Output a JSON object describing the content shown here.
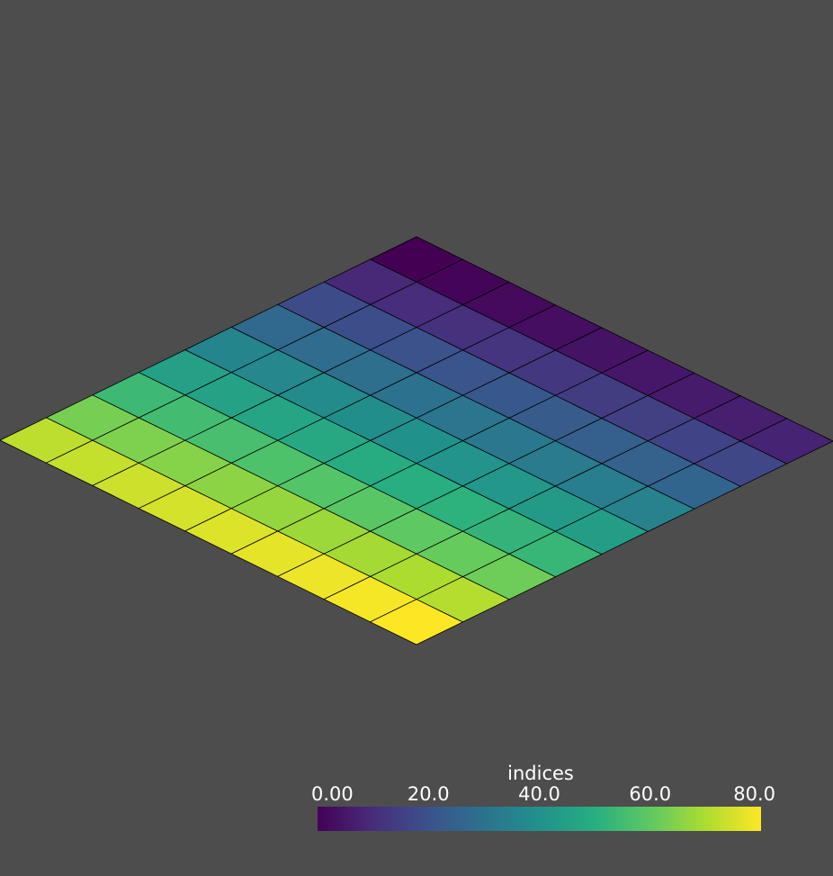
{
  "chart_data": {
    "type": "heatmap",
    "grid": {
      "rows": 9,
      "cols": 9
    },
    "values": [
      [
        0,
        1,
        2,
        3,
        4,
        5,
        6,
        7,
        8
      ],
      [
        9,
        10,
        11,
        12,
        13,
        14,
        15,
        16,
        17
      ],
      [
        18,
        19,
        20,
        21,
        22,
        23,
        24,
        25,
        26
      ],
      [
        27,
        28,
        29,
        30,
        31,
        32,
        33,
        34,
        35
      ],
      [
        36,
        37,
        38,
        39,
        40,
        41,
        42,
        43,
        44
      ],
      [
        45,
        46,
        47,
        48,
        49,
        50,
        51,
        52,
        53
      ],
      [
        54,
        55,
        56,
        57,
        58,
        59,
        60,
        61,
        62
      ],
      [
        63,
        64,
        65,
        66,
        67,
        68,
        69,
        70,
        71
      ],
      [
        72,
        73,
        74,
        75,
        76,
        77,
        78,
        79,
        80
      ]
    ],
    "colormap": "viridis",
    "range": [
      0,
      80
    ],
    "colorbar": {
      "title": "indices",
      "tick_labels": [
        "0.00",
        "20.0",
        "40.0",
        "60.0",
        "80.0"
      ],
      "tick_values": [
        0,
        20,
        40,
        60,
        80
      ],
      "orientation": "horizontal",
      "placement": "bottom-right"
    },
    "edge_color": "#000000",
    "background": "#4d4d4d"
  }
}
